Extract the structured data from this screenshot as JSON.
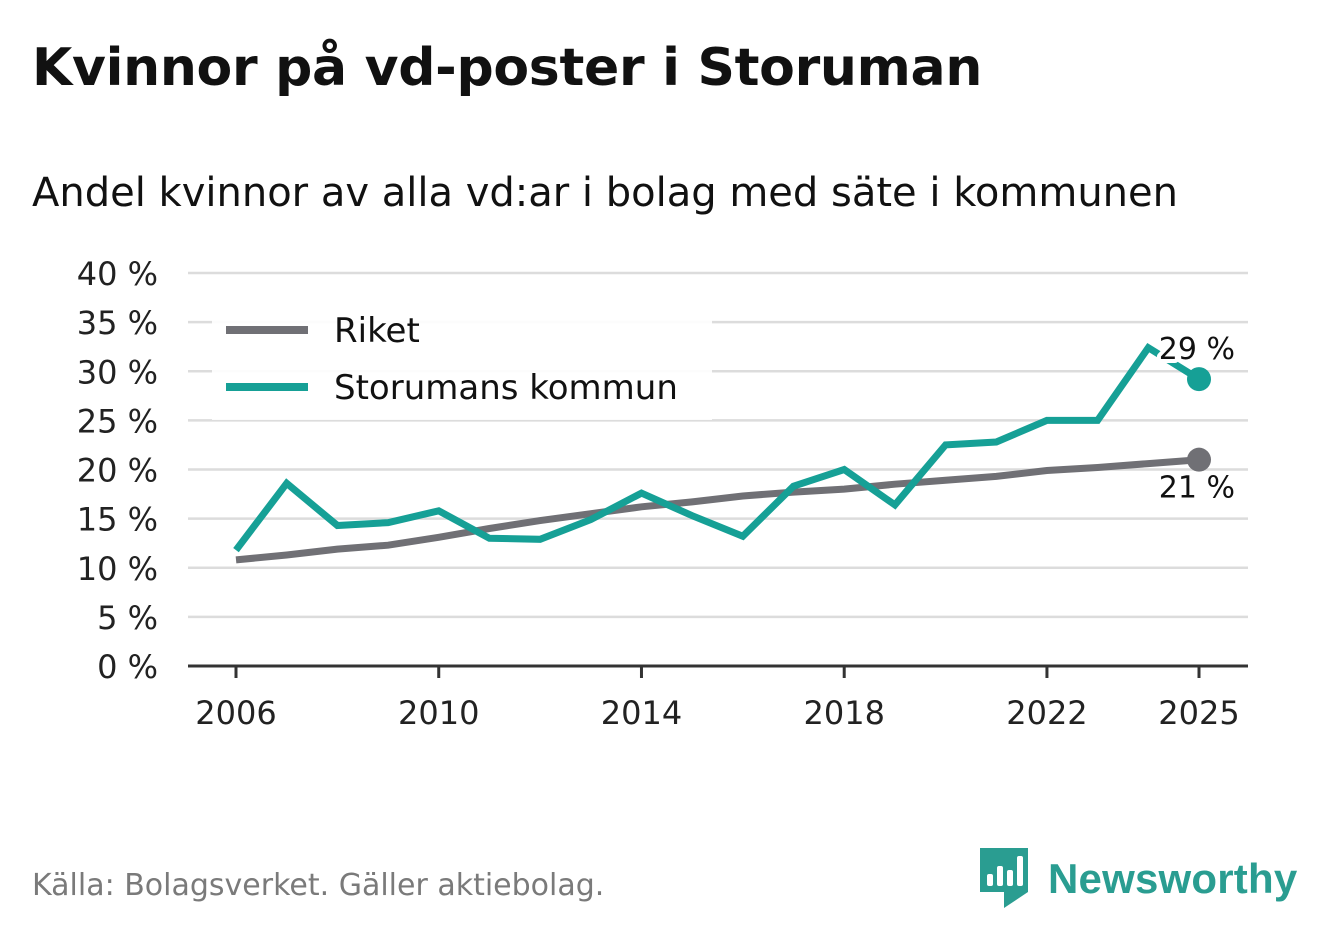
{
  "header": {
    "title": "Kvinnor på vd-poster i Storuman",
    "subtitle": "Andel kvinnor av alla vd:ar i bolag med säte i kommunen"
  },
  "footer": {
    "source": "Källa: Bolagsverket. Gäller aktiebolag.",
    "brand": "Newsworthy"
  },
  "colors": {
    "riket": "#707075",
    "kommun": "#16a096",
    "grid": "#dcdcdc",
    "axis": "#333333",
    "brand": "#2a9d91"
  },
  "chart_data": {
    "type": "line",
    "title": "Kvinnor på vd-poster i Storuman",
    "subtitle": "Andel kvinnor av alla vd:ar i bolag med säte i kommunen",
    "xlabel": "",
    "ylabel": "",
    "x": [
      2006,
      2007,
      2008,
      2009,
      2010,
      2011,
      2012,
      2013,
      2014,
      2015,
      2016,
      2017,
      2018,
      2019,
      2020,
      2021,
      2022,
      2023,
      2024,
      2025
    ],
    "xlim": [
      2006,
      2025
    ],
    "xticks": [
      2006,
      2010,
      2014,
      2018,
      2022,
      2025
    ],
    "xtick_labels": [
      "2006",
      "2010",
      "2014",
      "2018",
      "2022",
      "2025"
    ],
    "ylim": [
      0,
      40
    ],
    "yticks": [
      0,
      5,
      10,
      15,
      20,
      25,
      30,
      35,
      40
    ],
    "ytick_labels": [
      "0 %",
      "5 %",
      "10 %",
      "15 %",
      "20 %",
      "25 %",
      "30 %",
      "35 %",
      "40 %"
    ],
    "grid": true,
    "legend_position": "top-left",
    "series": [
      {
        "name": "Riket",
        "color": "#707075",
        "values": [
          10.8,
          11.3,
          11.9,
          12.3,
          13.1,
          14.0,
          14.8,
          15.5,
          16.2,
          16.7,
          17.3,
          17.7,
          18.0,
          18.5,
          18.9,
          19.3,
          19.9,
          20.2,
          20.6,
          21.0
        ],
        "end_label": "21 %",
        "end_label_position": "below"
      },
      {
        "name": "Storumans kommun",
        "color": "#16a096",
        "values": [
          11.8,
          18.6,
          14.3,
          14.6,
          15.8,
          13.0,
          12.9,
          14.9,
          17.6,
          15.3,
          13.2,
          18.3,
          20.0,
          16.4,
          22.5,
          22.8,
          25.0,
          25.0,
          32.4,
          29.2
        ],
        "end_label": "29 %",
        "end_label_position": "above"
      }
    ]
  }
}
